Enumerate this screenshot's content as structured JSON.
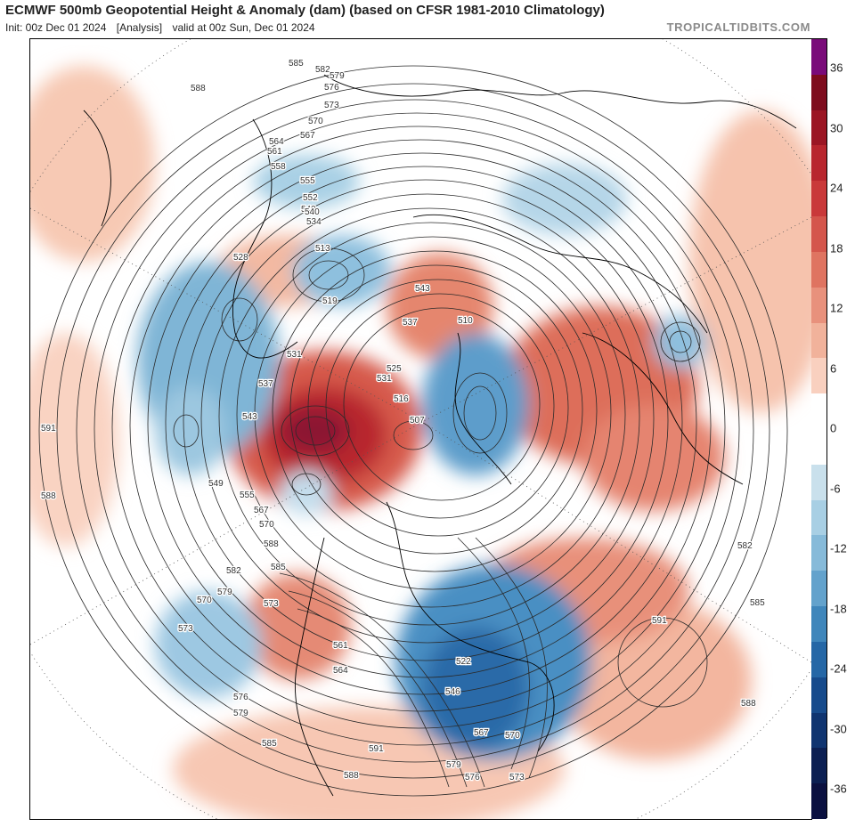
{
  "header": {
    "title": "ECMWF 500mb Geopotential Height & Anomaly (dam) (based on CFSR 1981-2010 Climatology)",
    "init": "Init: 00z Dec 01 2024",
    "run_type": "[Analysis]",
    "valid": "valid at 00z Sun, Dec 01 2024",
    "credit": "TROPICALTIDBITS.COM"
  },
  "colorbar": {
    "ticks": [
      "36",
      "30",
      "24",
      "18",
      "12",
      "6",
      "0",
      "-6",
      "-12",
      "-18",
      "-24",
      "-30",
      "-36"
    ],
    "colors": [
      "#7a0b7a",
      "#7e0d1e",
      "#9b1624",
      "#b8262e",
      "#c9393a",
      "#d4564c",
      "#df7461",
      "#e8917c",
      "#f1b29b",
      "#f9d0bf",
      "#ffffff",
      "#ffffff",
      "#c9e0ec",
      "#a8cfe4",
      "#86bad9",
      "#63a2cc",
      "#3f86bb",
      "#2567a6",
      "#174b8c",
      "#0f3470",
      "#0b1f52",
      "#0a1040"
    ]
  },
  "map": {
    "contour_labels": [
      {
        "text": "585"
      },
      {
        "text": "582"
      },
      {
        "text": "579"
      },
      {
        "text": "576"
      },
      {
        "text": "573"
      },
      {
        "text": "570"
      },
      {
        "text": "567"
      },
      {
        "text": "564"
      },
      {
        "text": "561"
      },
      {
        "text": "558"
      },
      {
        "text": "555"
      },
      {
        "text": "552"
      },
      {
        "text": "549"
      },
      {
        "text": "540"
      },
      {
        "text": "534"
      },
      {
        "text": "528"
      },
      {
        "text": "525"
      },
      {
        "text": "513"
      },
      {
        "text": "519"
      },
      {
        "text": "543"
      },
      {
        "text": "537"
      },
      {
        "text": "531"
      },
      {
        "text": "516"
      },
      {
        "text": "510"
      },
      {
        "text": "507"
      },
      {
        "text": "588"
      },
      {
        "text": "591"
      },
      {
        "text": "522"
      },
      {
        "text": "546"
      },
      {
        "text": "588"
      },
      {
        "text": "582"
      },
      {
        "text": "585"
      },
      {
        "text": "588"
      },
      {
        "text": "591"
      },
      {
        "text": "570"
      },
      {
        "text": "573"
      },
      {
        "text": "576"
      },
      {
        "text": "579"
      },
      {
        "text": "585"
      },
      {
        "text": "588"
      },
      {
        "text": "591"
      },
      {
        "text": "579"
      },
      {
        "text": "576"
      },
      {
        "text": "573"
      },
      {
        "text": "570"
      },
      {
        "text": "567"
      },
      {
        "text": "561"
      },
      {
        "text": "564"
      },
      {
        "text": "573"
      },
      {
        "text": "579"
      },
      {
        "text": "582"
      },
      {
        "text": "585"
      },
      {
        "text": "588"
      },
      {
        "text": "570"
      },
      {
        "text": "567"
      },
      {
        "text": "555"
      },
      {
        "text": "549"
      },
      {
        "text": "543"
      },
      {
        "text": "537"
      },
      {
        "text": "531"
      }
    ]
  }
}
